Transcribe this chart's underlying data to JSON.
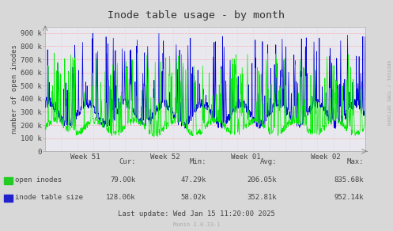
{
  "title": "Inode table usage - by month",
  "ylabel": "number of open inodes",
  "xlabel_ticks": [
    "Week 51",
    "Week 52",
    "Week 01",
    "Week 02"
  ],
  "ylim": [
    0,
    950000
  ],
  "yticks": [
    0,
    100000,
    200000,
    300000,
    400000,
    500000,
    600000,
    700000,
    800000,
    900000
  ],
  "ytick_labels": [
    "0",
    "100 k",
    "200 k",
    "300 k",
    "400 k",
    "500 k",
    "600 k",
    "700 k",
    "800 k",
    "900 k"
  ],
  "fig_bg_color": "#d8d8d8",
  "plot_bg_color": "#e8e8ee",
  "grid_color_h": "#ff9999",
  "grid_color_v": "#ccccee",
  "line_green": "#00ee00",
  "line_blue": "#0000dd",
  "legend_colors": [
    "#22cc22",
    "#2222cc"
  ],
  "legend_items": [
    "open inodes",
    "inode table size"
  ],
  "stats_cur": [
    "79.00k",
    "128.06k"
  ],
  "stats_min": [
    "47.29k",
    "58.02k"
  ],
  "stats_avg": [
    "206.05k",
    "352.81k"
  ],
  "stats_max": [
    "835.68k",
    "952.14k"
  ],
  "last_update": "Last update: Wed Jan 15 11:20:00 2025",
  "munin_label": "Munin 2.0.33-1",
  "rrdtool_label": "RRDTOOL / TOBI OETIKER",
  "title_fontsize": 9.5,
  "axis_fontsize": 6.5,
  "legend_fontsize": 6.5,
  "stats_fontsize": 6.5
}
